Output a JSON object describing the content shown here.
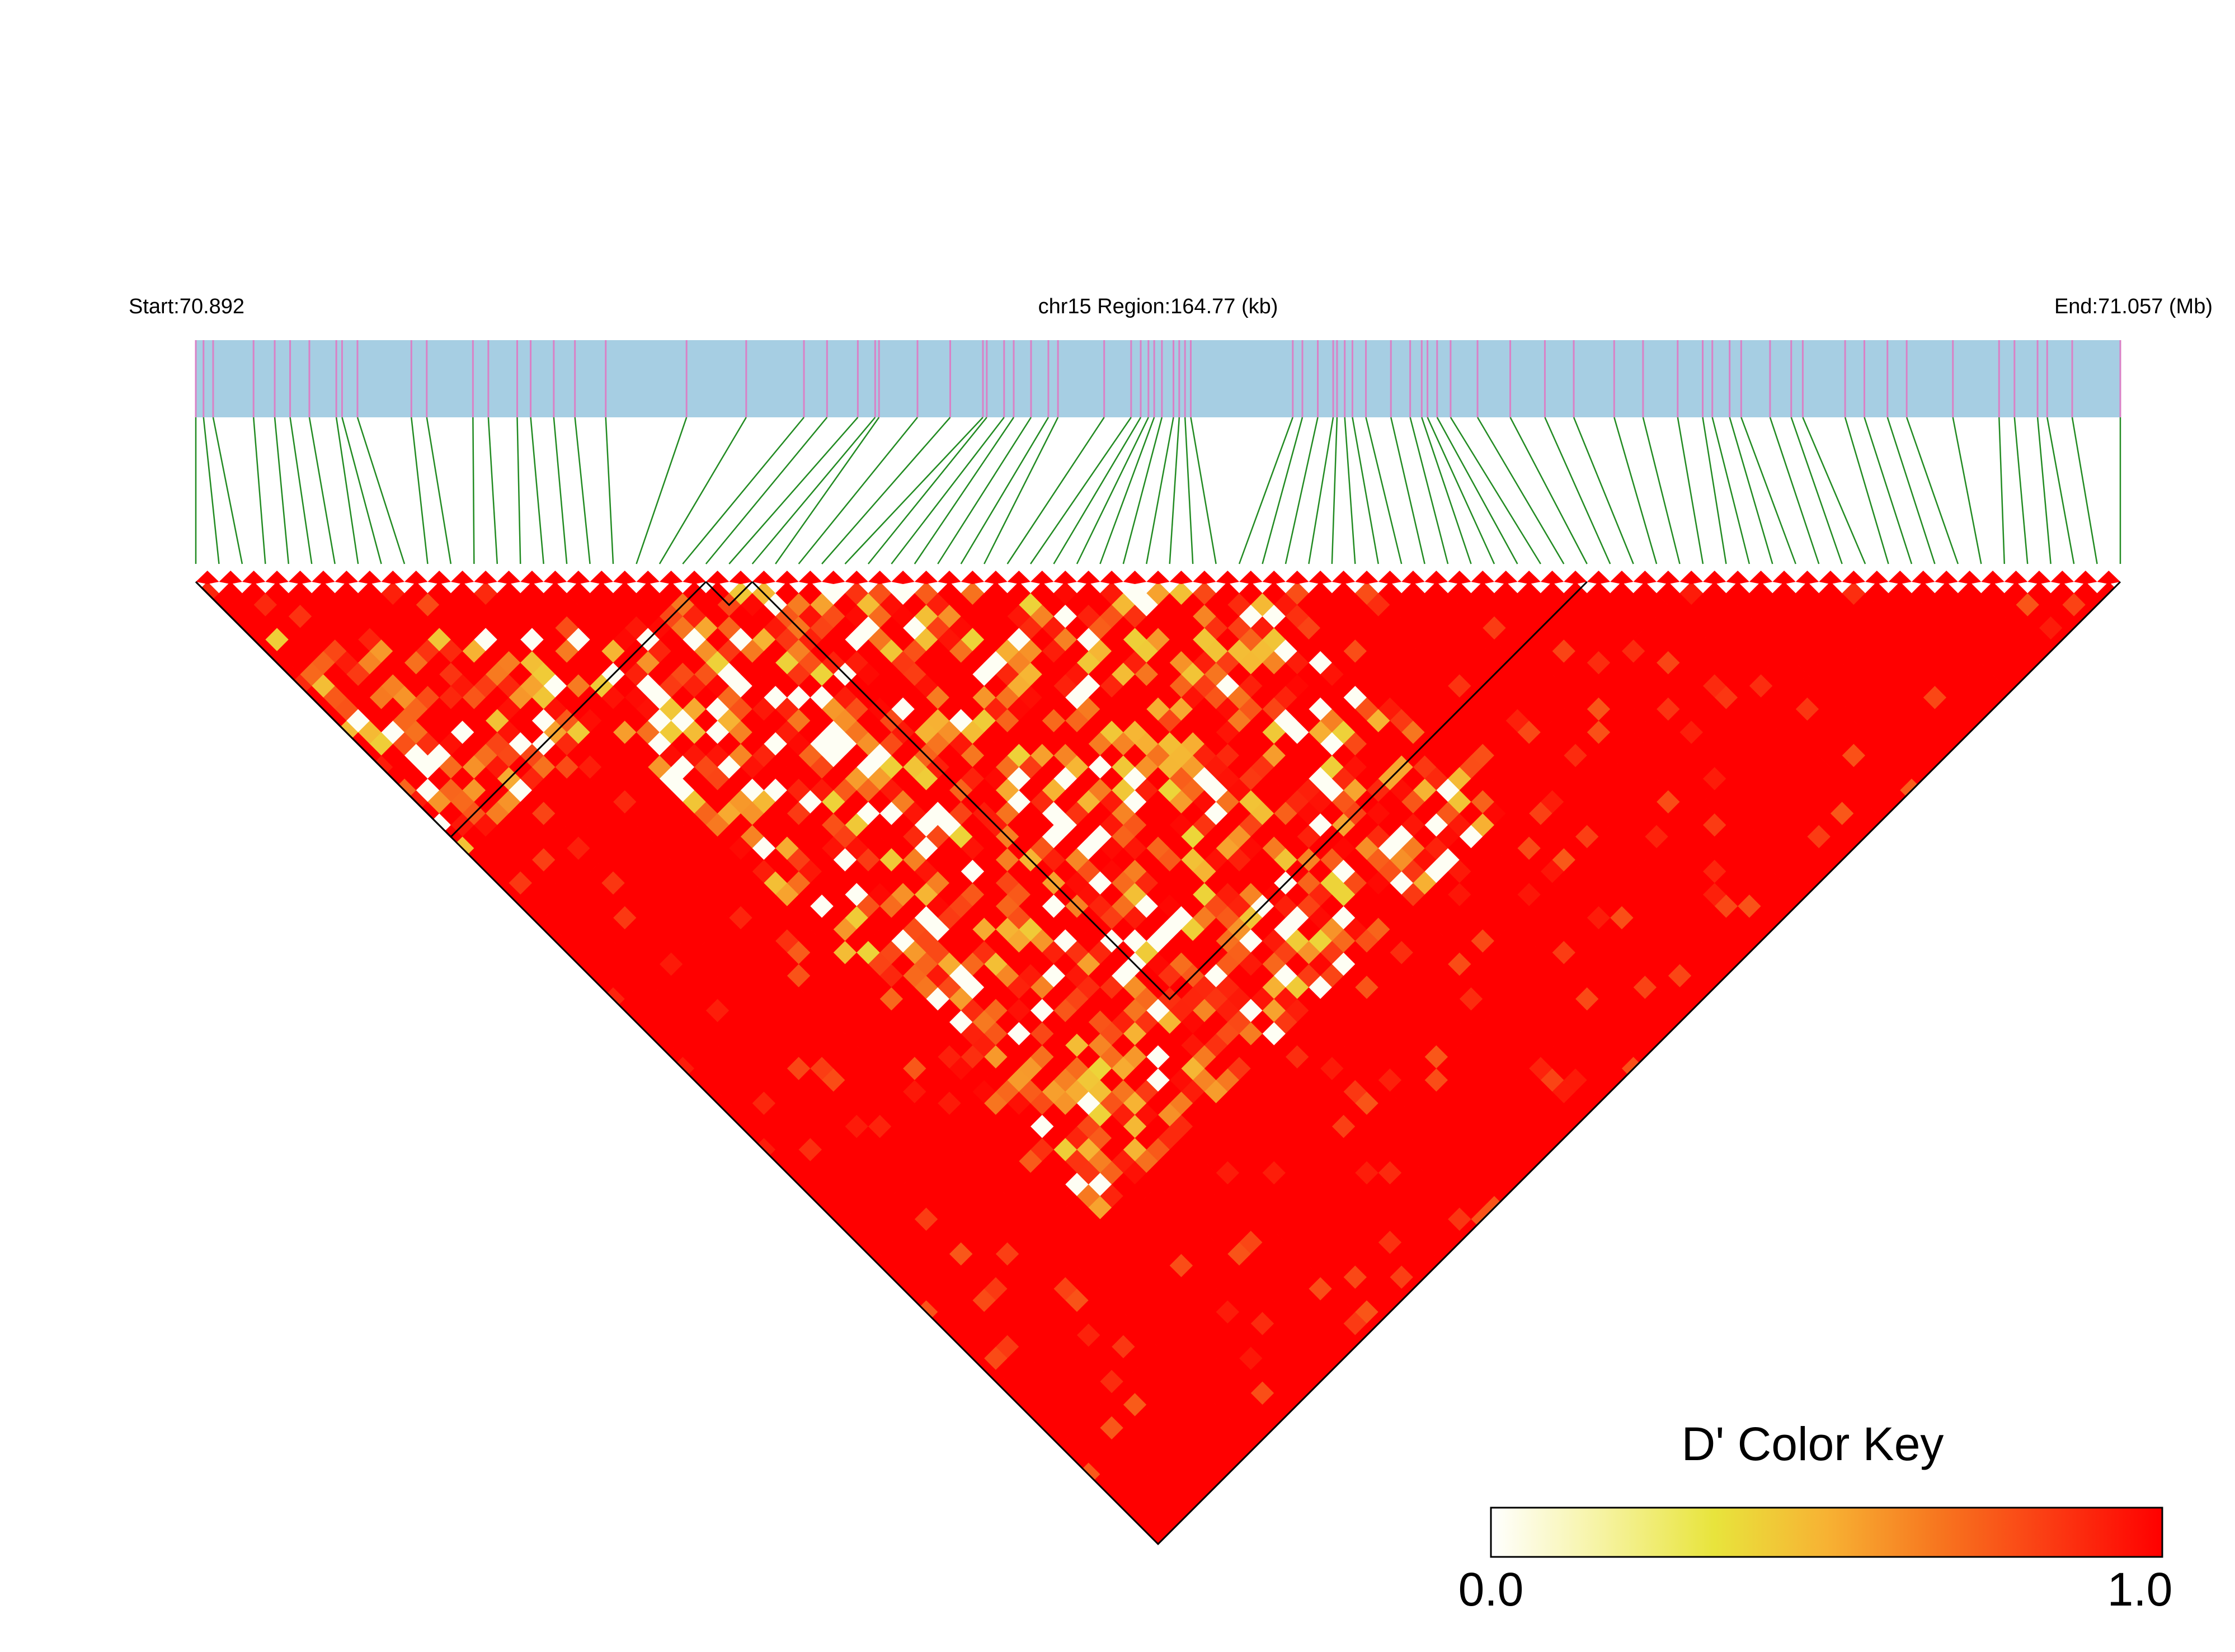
{
  "chart_data": {
    "type": "heatmap",
    "subtype": "LD triangle plot (D')",
    "header": {
      "start_label": "Start:70.892",
      "region_label": "chr15 Region:164.77 (kb)",
      "end_label": "End:71.057 (Mb)"
    },
    "region": {
      "chromosome": "chr15",
      "start_mb": 70.892,
      "end_mb": 71.057,
      "length_kb": 164.77
    },
    "snp_count": 84,
    "snp_positions_frac": [
      0.0,
      0.004,
      0.009,
      0.03,
      0.041,
      0.049,
      0.059,
      0.073,
      0.076,
      0.084,
      0.112,
      0.12,
      0.144,
      0.152,
      0.167,
      0.174,
      0.186,
      0.197,
      0.213,
      0.255,
      0.286,
      0.316,
      0.328,
      0.344,
      0.353,
      0.355,
      0.375,
      0.392,
      0.409,
      0.411,
      0.42,
      0.425,
      0.434,
      0.443,
      0.448,
      0.472,
      0.486,
      0.491,
      0.495,
      0.498,
      0.502,
      0.508,
      0.511,
      0.514,
      0.517,
      0.57,
      0.575,
      0.583,
      0.591,
      0.593,
      0.597,
      0.601,
      0.608,
      0.621,
      0.631,
      0.637,
      0.64,
      0.645,
      0.652,
      0.666,
      0.683,
      0.701,
      0.716,
      0.737,
      0.752,
      0.77,
      0.783,
      0.788,
      0.797,
      0.803,
      0.818,
      0.829,
      0.835,
      0.857,
      0.867,
      0.879,
      0.889,
      0.913,
      0.937,
      0.945,
      0.957,
      0.962,
      0.975,
      1.0
    ],
    "ld_blocks": [
      {
        "first_snp": 0,
        "last_snp": 22
      },
      {
        "first_snp": 22,
        "last_snp": 24
      },
      {
        "first_snp": 24,
        "last_snp": 60
      }
    ],
    "ld_matrix_note": "D' between SNP pairs; majority of pairs ~1.0 (red), a wedge of lower values (white–yellow–orange) among pairs spanning SNPs 12–46.",
    "color_key": {
      "title": "D' Color Key",
      "min_label": "0.0",
      "max_label": "1.0",
      "range": [
        0.0,
        1.0
      ],
      "stops": [
        "#ffffff",
        "#f6f3a0",
        "#e8e43c",
        "#f7b233",
        "#f7761f",
        "#fb3b13",
        "#ff0000"
      ]
    },
    "colors": {
      "gene_track": "#a6cee3",
      "snp_tick": "#d981c6",
      "connector": "#228b22",
      "high_ld": "#ff0000",
      "block_outline": "#000000"
    }
  }
}
